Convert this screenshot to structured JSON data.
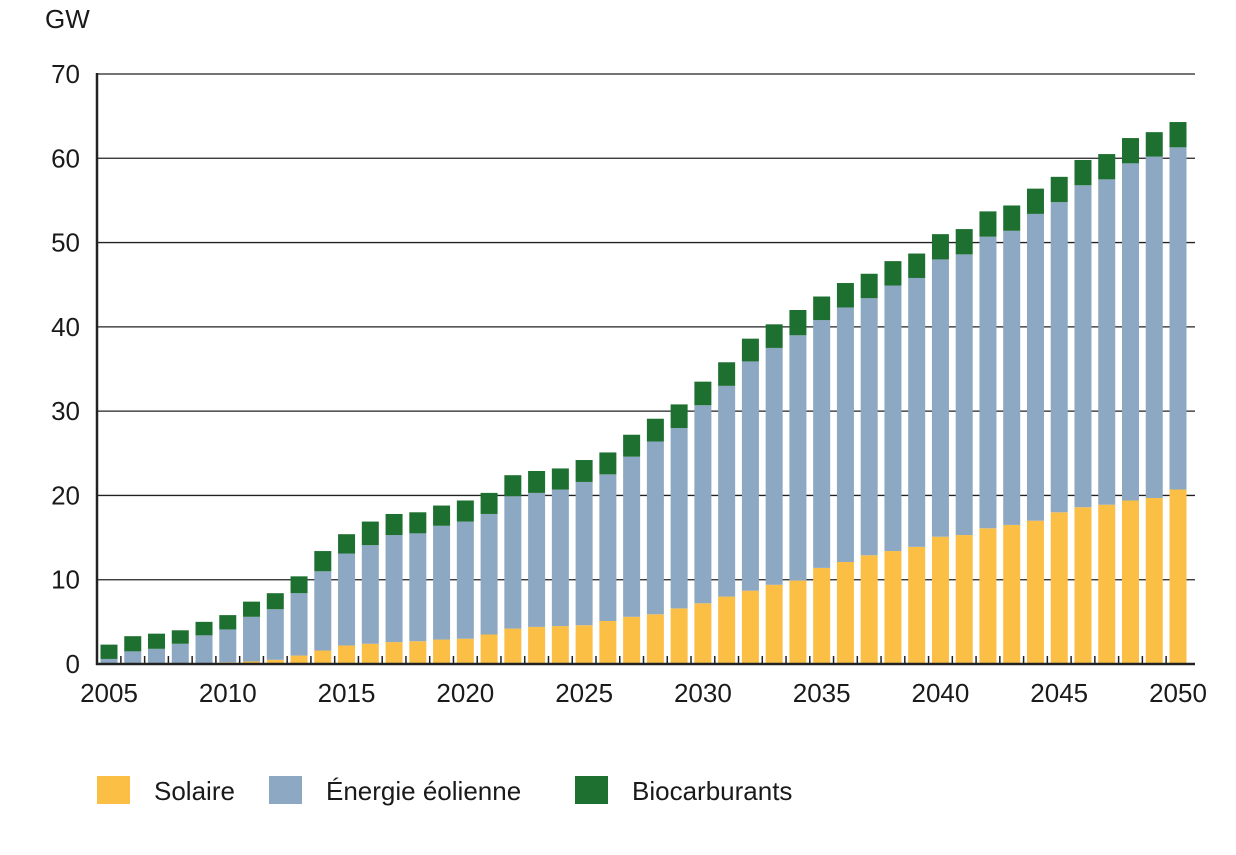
{
  "chart_data": {
    "type": "bar",
    "stacked": true,
    "title": "",
    "ylabel": "GW",
    "xlabel": "",
    "ylim": [
      0,
      70
    ],
    "yticks": [
      0,
      10,
      20,
      30,
      40,
      50,
      60,
      70
    ],
    "xtick_labels": [
      "2005",
      "2010",
      "2015",
      "2020",
      "2025",
      "2030",
      "2035",
      "2040",
      "2045",
      "2050"
    ],
    "grid": true,
    "legend_position": "bottom-left",
    "categories": [
      2005,
      2006,
      2007,
      2008,
      2009,
      2010,
      2011,
      2012,
      2013,
      2014,
      2015,
      2016,
      2017,
      2018,
      2019,
      2020,
      2021,
      2022,
      2023,
      2024,
      2025,
      2026,
      2027,
      2028,
      2029,
      2030,
      2031,
      2032,
      2033,
      2034,
      2035,
      2036,
      2037,
      2038,
      2039,
      2040,
      2041,
      2042,
      2043,
      2044,
      2045,
      2046,
      2047,
      2048,
      2049,
      2050
    ],
    "series": [
      {
        "name": "Solaire",
        "color": "#fbbf45",
        "values": [
          0,
          0,
          0,
          0,
          0,
          0.2,
          0.3,
          0.5,
          1.0,
          1.6,
          2.2,
          2.4,
          2.6,
          2.7,
          2.9,
          3.0,
          3.5,
          4.2,
          4.4,
          4.5,
          4.6,
          5.1,
          5.6,
          5.9,
          6.6,
          7.2,
          8.0,
          8.7,
          9.4,
          9.9,
          11.4,
          12.1,
          12.9,
          13.4,
          13.9,
          15.1,
          15.3,
          16.1,
          16.5,
          17.0,
          18.0,
          18.6,
          18.9,
          19.4,
          19.7,
          20.7
        ]
      },
      {
        "name": "Énergie éolienne",
        "color": "#8ca8c3",
        "values": [
          0.6,
          1.5,
          1.8,
          2.4,
          3.4,
          3.9,
          5.3,
          6.0,
          7.4,
          9.4,
          10.9,
          11.7,
          12.7,
          12.8,
          13.5,
          13.9,
          14.3,
          15.7,
          15.9,
          16.2,
          17.0,
          17.4,
          19.0,
          20.5,
          21.4,
          23.5,
          25.0,
          27.2,
          28.1,
          29.1,
          29.4,
          30.2,
          30.5,
          31.5,
          31.9,
          32.9,
          33.3,
          34.6,
          34.9,
          36.4,
          36.8,
          38.2,
          38.6,
          40.0,
          40.5,
          40.6
        ]
      },
      {
        "name": "Biocarburants",
        "color": "#1e7030",
        "values": [
          1.7,
          1.8,
          1.8,
          1.6,
          1.6,
          1.7,
          1.8,
          1.9,
          2.0,
          2.4,
          2.3,
          2.8,
          2.5,
          2.5,
          2.4,
          2.5,
          2.5,
          2.5,
          2.6,
          2.5,
          2.6,
          2.6,
          2.6,
          2.7,
          2.8,
          2.8,
          2.8,
          2.7,
          2.8,
          3.0,
          2.8,
          2.9,
          2.9,
          2.9,
          2.9,
          3.0,
          3.0,
          3.0,
          3.0,
          3.0,
          3.0,
          3.0,
          3.0,
          3.0,
          2.9,
          3.0
        ]
      }
    ]
  }
}
